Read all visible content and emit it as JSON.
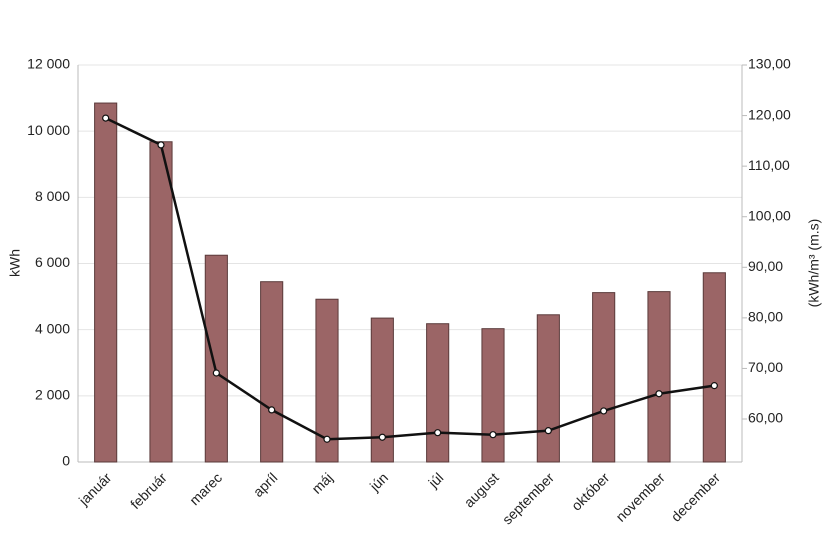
{
  "chart_data": {
    "type": "bar-line",
    "categories": [
      "január",
      "február",
      "marec",
      "apríl",
      "máj",
      "jún",
      "júl",
      "august",
      "september",
      "október",
      "november",
      "december"
    ],
    "series": [
      {
        "type": "bar",
        "color": "#9b6566",
        "values": [
          10850,
          9680,
          6250,
          5450,
          4920,
          4350,
          4180,
          4030,
          4450,
          5120,
          5150,
          5720
        ]
      },
      {
        "type": "line",
        "axis": "y2",
        "color": "#111111",
        "values": [
          119.5,
          114.2,
          69.1,
          61.8,
          56.0,
          56.4,
          57.3,
          56.9,
          57.7,
          61.6,
          65.0,
          66.6
        ]
      }
    ],
    "ylabel": "kWh",
    "y2label": "(kWh/m³ (m.s)",
    "ylim": [
      0,
      12000
    ],
    "yticks": [
      0,
      {
        "value": 2000,
        "label": "2 000"
      },
      {
        "value": 4000,
        "label": "4 000"
      },
      {
        "value": 6000,
        "label": "6 000"
      },
      {
        "value": 8000,
        "label": "8 000"
      },
      {
        "value": 10000,
        "label": "10 000"
      },
      {
        "value": 12000,
        "label": "12 000"
      }
    ],
    "y2lim": [
      51.5,
      130
    ],
    "y2ticks": [
      {
        "value": 60,
        "label": "60,00"
      },
      {
        "value": 70,
        "label": "70,00"
      },
      {
        "value": 80,
        "label": "80,00"
      },
      {
        "value": 90,
        "label": "90,00"
      },
      {
        "value": 100,
        "label": "100,00"
      },
      {
        "value": 110,
        "label": "110,00"
      },
      {
        "value": 120,
        "label": "120,00"
      },
      {
        "value": 130,
        "label": "130,00"
      }
    ],
    "grid": true
  }
}
